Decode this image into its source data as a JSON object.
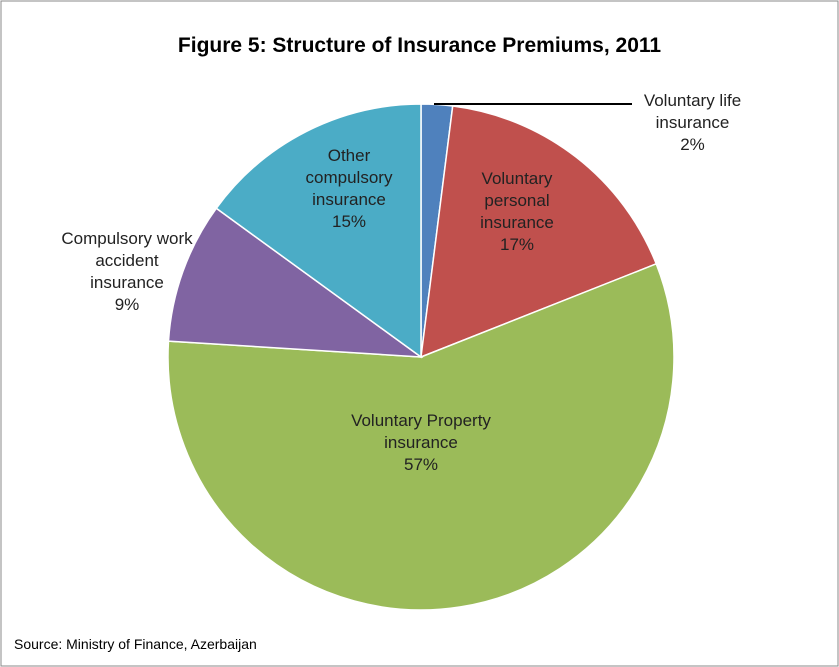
{
  "chart_data": {
    "type": "pie",
    "title": "Figure 5: Structure of Insurance Premiums, 2011",
    "source": "Source:  Ministry of Finance,  Azerbaijan",
    "categories": [
      "Voluntary life insurance",
      "Voluntary personal insurance",
      "Voluntary Property insurance",
      "Compulsory work accident insurance",
      "Other compulsory insurance"
    ],
    "values": [
      2,
      17,
      57,
      9,
      15
    ],
    "value_labels": [
      "2%",
      "17%",
      "57%",
      "9%",
      "15%"
    ],
    "colors": [
      "#4f81bd",
      "#c0504d",
      "#9bbb59",
      "#8064a2",
      "#4bacc6"
    ]
  }
}
